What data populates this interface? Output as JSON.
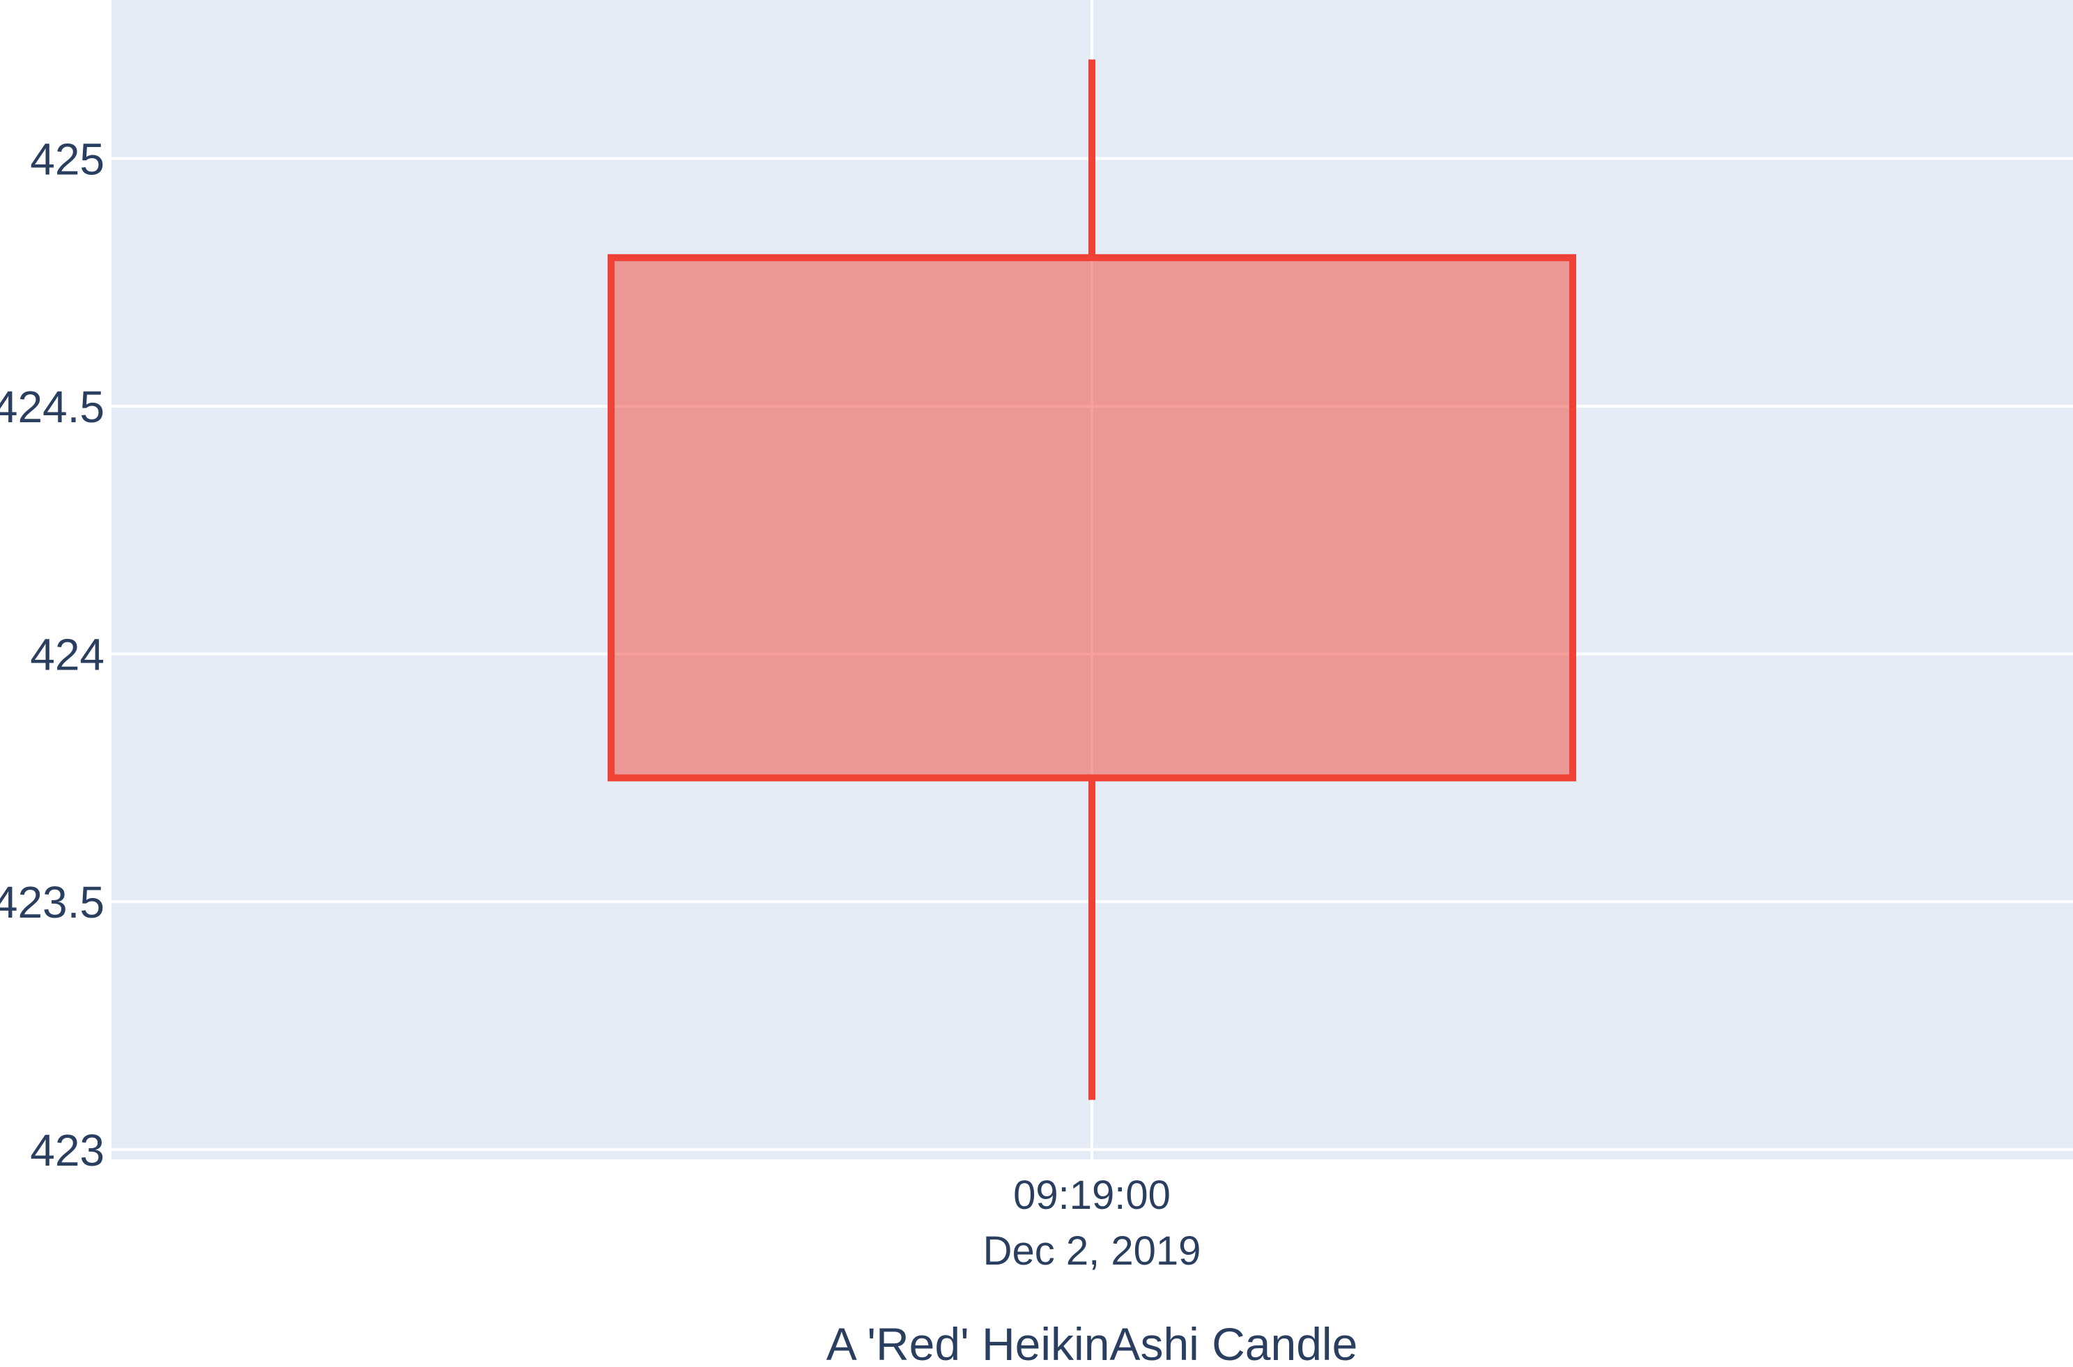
{
  "chart_data": {
    "type": "candlestick",
    "title": "",
    "xlabel": "A 'Red' HeikinAshi Candle",
    "ylabel": "",
    "x": [
      "2019-12-02 09:19:00"
    ],
    "x_tick_labels": [
      {
        "time": "09:19:00",
        "date": "Dec 2, 2019"
      }
    ],
    "open": [
      424.8
    ],
    "high": [
      425.2
    ],
    "low": [
      423.1
    ],
    "close": [
      423.75
    ],
    "ylim": [
      422.98,
      425.32
    ],
    "y_ticks": [
      423,
      423.5,
      424,
      424.5,
      425
    ],
    "y_tick_labels": [
      "423",
      "423.5",
      "424",
      "424.5",
      "425"
    ],
    "grid": true,
    "legend": false,
    "colors": {
      "decreasing_line": "#ef4136",
      "decreasing_fill": "rgba(239,65,54,0.5)",
      "plot_background": "#e5ecf6",
      "grid": "#ffffff",
      "text": "#2a3f5f"
    }
  }
}
